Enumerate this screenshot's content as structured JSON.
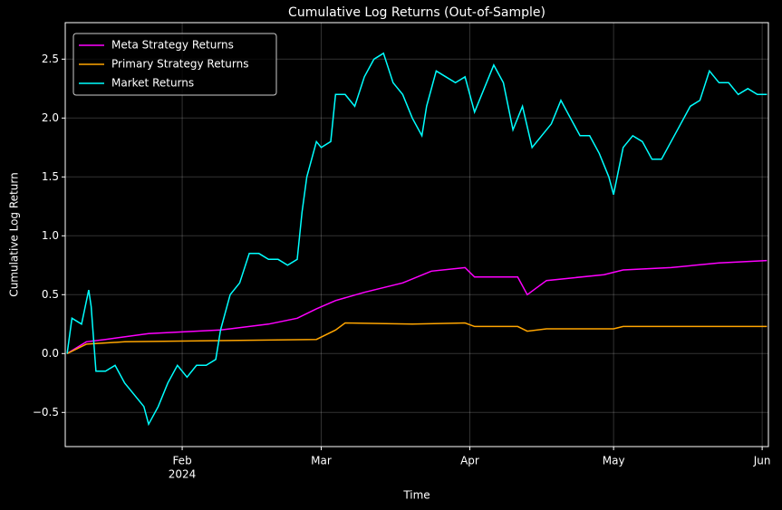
{
  "chart_data": {
    "type": "line",
    "title": "Cumulative Log Returns (Out-of-Sample)",
    "x_label": "Time",
    "y_label": "Cumulative Log Return",
    "xlim": [
      7.6,
      154.3
    ],
    "ylim": [
      -0.79,
      2.81
    ],
    "xticks": [
      {
        "value": 32,
        "label": "Feb"
      },
      {
        "value": 61,
        "label": "Mar"
      },
      {
        "value": 92,
        "label": "Apr"
      },
      {
        "value": 122,
        "label": "May"
      },
      {
        "value": 153,
        "label": "Jun"
      }
    ],
    "xtick_year": "2024",
    "yticks": [
      {
        "value": -0.5,
        "label": "−0.5"
      },
      {
        "value": 0,
        "label": "0.0"
      },
      0.5,
      {
        "value": 1,
        "label": "1.0"
      },
      1.5,
      {
        "value": 2,
        "label": "2.0"
      },
      2.5
    ],
    "grid": true,
    "legend": "upper left",
    "series": [
      {
        "name": "Meta Strategy Returns",
        "color": "#ff00ff",
        "x": [
          8,
          12,
          16,
          25,
          40,
          50,
          56,
          60,
          64,
          70,
          78,
          84,
          91,
          93,
          102,
          104,
          108,
          120,
          124,
          134,
          144,
          154
        ],
        "values": [
          0,
          0.1,
          0.12,
          0.17,
          0.2,
          0.25,
          0.3,
          0.38,
          0.45,
          0.52,
          0.6,
          0.7,
          0.73,
          0.65,
          0.65,
          0.5,
          0.62,
          0.67,
          0.71,
          0.73,
          0.77,
          0.79
        ]
      },
      {
        "name": "Primary Strategy Returns",
        "color": "#ffa500",
        "x": [
          8,
          12,
          20,
          40,
          60,
          64,
          66,
          80,
          91,
          93,
          102,
          104,
          108,
          122,
          124,
          154
        ],
        "values": [
          0,
          0.08,
          0.1,
          0.11,
          0.12,
          0.2,
          0.26,
          0.25,
          0.26,
          0.23,
          0.23,
          0.19,
          0.21,
          0.21,
          0.23,
          0.23
        ]
      },
      {
        "name": "Market Returns",
        "color": "#00ffff",
        "x": [
          8,
          9,
          11,
          12.5,
          13,
          14,
          16,
          18,
          20,
          22,
          24,
          25,
          27,
          29,
          31,
          33,
          35,
          37,
          39,
          40,
          42,
          44,
          46,
          48,
          50,
          52,
          54,
          56,
          57,
          58,
          60,
          61,
          63,
          64,
          66,
          68,
          70,
          72,
          74,
          76,
          78,
          80,
          82,
          83,
          85,
          87,
          89,
          91,
          93,
          95,
          97,
          99,
          101,
          103,
          105,
          107,
          109,
          111,
          113,
          115,
          117,
          119,
          121,
          122,
          124,
          126,
          128,
          130,
          132,
          134,
          136,
          138,
          140,
          142,
          144,
          146,
          148,
          150,
          152,
          154
        ],
        "values": [
          0,
          0.3,
          0.25,
          0.54,
          0.4,
          -0.15,
          -0.15,
          -0.1,
          -0.25,
          -0.35,
          -0.45,
          -0.6,
          -0.45,
          -0.25,
          -0.1,
          -0.2,
          -0.1,
          -0.1,
          -0.05,
          0.2,
          0.5,
          0.6,
          0.85,
          0.85,
          0.8,
          0.8,
          0.75,
          0.8,
          1.2,
          1.5,
          1.8,
          1.75,
          1.8,
          2.2,
          2.2,
          2.1,
          2.35,
          2.5,
          2.55,
          2.3,
          2.2,
          2,
          1.85,
          2.1,
          2.4,
          2.35,
          2.3,
          2.35,
          2.05,
          2.25,
          2.45,
          2.3,
          1.9,
          2.1,
          1.75,
          1.85,
          1.95,
          2.15,
          2,
          1.85,
          1.85,
          1.7,
          1.5,
          1.35,
          1.75,
          1.85,
          1.8,
          1.65,
          1.65,
          1.8,
          1.95,
          2.1,
          2.15,
          2.4,
          2.3,
          2.3,
          2.2,
          2.25,
          2.2,
          2.2
        ]
      }
    ]
  }
}
